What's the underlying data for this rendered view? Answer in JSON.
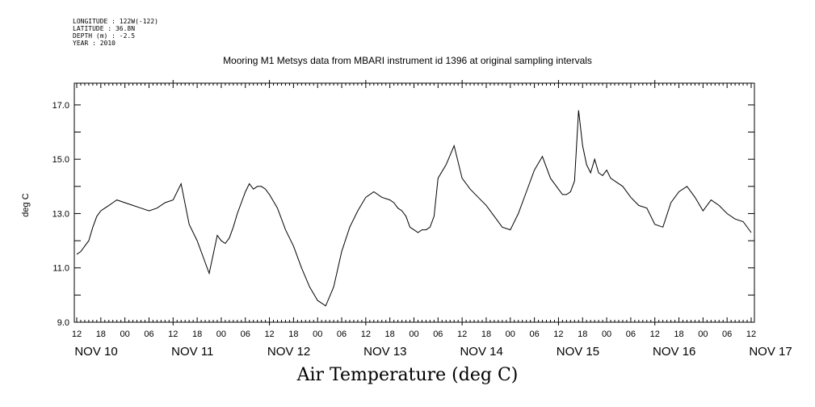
{
  "header": {
    "longitude": "LONGITUDE : 122W(-122)",
    "latitude": "LATITUDE : 36.8N",
    "depth": "DEPTH (m) : -2.5",
    "year": "YEAR : 2010"
  },
  "chart_data": {
    "type": "line",
    "title": "Mooring M1 Metsys data from MBARI instrument id 1396 at original sampling intervals",
    "xlabel": "Air Temperature (deg C)",
    "ylabel": "deg C",
    "ylim": [
      9.0,
      17.8
    ],
    "xlim_hours": [
      0,
      168
    ],
    "y_ticks": [
      "9.0",
      "11.0",
      "13.0",
      "15.0",
      "17.0"
    ],
    "x_hour_ticks": [
      "12",
      "18",
      "00",
      "06",
      "12",
      "18",
      "00",
      "06",
      "12",
      "18",
      "00",
      "06",
      "12",
      "18",
      "00",
      "06",
      "12",
      "18",
      "00",
      "06",
      "12",
      "18",
      "00",
      "06",
      "12",
      "18",
      "00",
      "06",
      "12"
    ],
    "x_day_labels": [
      "NOV 10",
      "NOV 11",
      "NOV 12",
      "NOV 13",
      "NOV 14",
      "NOV 15",
      "NOV 16",
      "NOV 17"
    ],
    "grid": false,
    "series": [
      {
        "x_hours_since_nov10_12z": [
          0,
          1,
          2,
          3,
          4,
          5,
          6,
          7,
          8,
          9,
          10,
          12,
          14,
          16,
          18,
          20,
          22,
          24,
          26,
          28,
          30,
          32,
          33,
          34,
          35,
          36,
          37,
          38,
          39,
          40,
          41,
          42,
          43,
          44,
          45,
          46,
          47,
          48,
          50,
          52,
          54,
          56,
          58,
          60,
          62,
          64,
          66,
          68,
          70,
          72,
          74,
          76,
          78,
          79,
          80,
          81,
          82,
          83,
          84,
          85,
          86,
          87,
          88,
          89,
          90,
          92,
          94,
          96,
          98,
          100,
          102,
          104,
          106,
          108,
          110,
          112,
          114,
          116,
          118,
          120,
          121,
          122,
          123,
          124,
          125,
          126,
          127,
          128,
          129,
          130,
          131,
          132,
          133,
          134,
          136,
          138,
          140,
          142,
          144,
          146,
          148,
          150,
          152,
          154,
          156,
          158,
          160,
          162,
          164,
          166,
          168
        ],
        "y_deg_c": [
          11.5,
          11.6,
          11.8,
          12.0,
          12.5,
          12.9,
          13.1,
          13.2,
          13.3,
          13.4,
          13.5,
          13.4,
          13.3,
          13.2,
          13.1,
          13.2,
          13.4,
          13.5,
          14.1,
          12.6,
          12.0,
          11.2,
          10.8,
          11.5,
          12.2,
          12.0,
          11.9,
          12.1,
          12.5,
          13.0,
          13.4,
          13.8,
          14.1,
          13.9,
          14.0,
          14.0,
          13.9,
          13.7,
          13.2,
          12.4,
          11.8,
          11.0,
          10.3,
          9.8,
          9.6,
          10.3,
          11.6,
          12.5,
          13.1,
          13.6,
          13.8,
          13.6,
          13.5,
          13.4,
          13.2,
          13.1,
          12.9,
          12.5,
          12.4,
          12.3,
          12.4,
          12.4,
          12.5,
          12.9,
          14.3,
          14.8,
          15.5,
          14.3,
          13.9,
          13.6,
          13.3,
          12.9,
          12.5,
          12.4,
          13.0,
          13.8,
          14.6,
          15.1,
          14.3,
          13.9,
          13.7,
          13.7,
          13.8,
          14.2,
          16.8,
          15.5,
          14.8,
          14.5,
          15.0,
          14.5,
          14.4,
          14.6,
          14.3,
          14.2,
          14.0,
          13.6,
          13.3,
          13.2,
          12.6,
          12.5,
          13.4,
          13.8,
          14.0,
          13.6,
          13.1,
          13.5,
          13.3,
          13.0,
          12.8,
          12.7,
          12.3
        ]
      }
    ]
  }
}
